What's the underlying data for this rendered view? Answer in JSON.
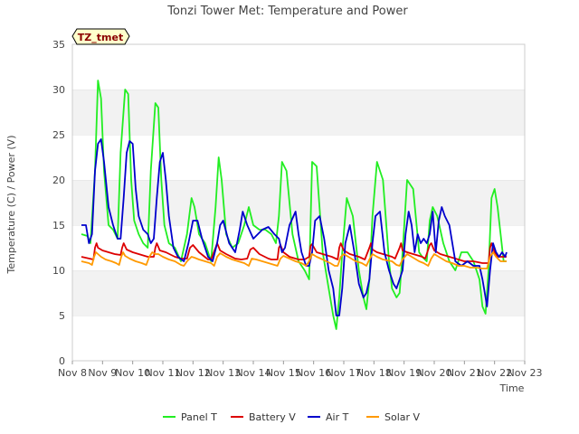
{
  "chart_data": {
    "type": "line",
    "title": "Tonzi Tower Met: Temperature and Power",
    "xlabel": "Time",
    "ylabel": "Temperature (C) / Power (V)",
    "tag": "TZ_tmet",
    "ylim": [
      0,
      35
    ],
    "yticks": [
      0,
      5,
      10,
      15,
      20,
      25,
      30,
      35
    ],
    "xlim": [
      0,
      15
    ],
    "xtick_labels": [
      "Nov 8",
      "Nov 9",
      "Nov 10",
      "Nov 11",
      "Nov 12",
      "Nov 13",
      "Nov 14",
      "Nov 15",
      "Nov 16",
      "Nov 17",
      "Nov 18",
      "Nov 19",
      "Nov 20",
      "Nov 21",
      "Nov 22",
      "Nov 23"
    ],
    "x_unit": "days since Nov 8",
    "series": [
      {
        "name": "Panel T",
        "color": "#22ee22",
        "x": [
          0.3,
          0.5,
          0.6,
          0.75,
          0.85,
          0.95,
          1.05,
          1.2,
          1.35,
          1.5,
          1.6,
          1.75,
          1.85,
          1.95,
          2.05,
          2.2,
          2.35,
          2.5,
          2.6,
          2.75,
          2.85,
          2.95,
          3.05,
          3.2,
          3.4,
          3.6,
          3.8,
          3.95,
          4.05,
          4.2,
          4.4,
          4.6,
          4.75,
          4.85,
          4.95,
          5.1,
          5.3,
          5.5,
          5.7,
          5.85,
          6.0,
          6.2,
          6.4,
          6.6,
          6.75,
          6.85,
          6.95,
          7.1,
          7.3,
          7.5,
          7.7,
          7.85,
          7.95,
          8.1,
          8.3,
          8.5,
          8.65,
          8.75,
          8.85,
          8.95,
          9.1,
          9.3,
          9.5,
          9.65,
          9.75,
          9.85,
          9.95,
          10.1,
          10.3,
          10.5,
          10.6,
          10.75,
          10.85,
          10.95,
          11.1,
          11.3,
          11.5,
          11.6,
          11.75,
          11.85,
          11.95,
          12.1,
          12.3,
          12.5,
          12.7,
          12.9,
          13.1,
          13.3,
          13.5,
          13.6,
          13.7,
          13.8,
          13.9,
          14.0,
          14.1,
          14.3,
          14.4
        ],
        "values": [
          14.0,
          13.8,
          13.0,
          21.0,
          31.0,
          29.0,
          21.0,
          15.0,
          14.5,
          13.5,
          23.0,
          30.0,
          29.5,
          20.0,
          15.5,
          14.0,
          13.0,
          12.5,
          21.0,
          28.5,
          28.0,
          20.0,
          15.0,
          13.0,
          12.5,
          11.0,
          14.0,
          18.0,
          17.0,
          14.0,
          13.0,
          11.0,
          17.0,
          22.5,
          20.0,
          14.0,
          12.5,
          13.0,
          15.0,
          17.0,
          15.0,
          14.5,
          14.5,
          14.0,
          13.0,
          16.0,
          22.0,
          21.0,
          14.0,
          11.0,
          10.0,
          9.0,
          22.0,
          21.5,
          12.0,
          8.0,
          5.0,
          3.5,
          7.0,
          12.0,
          18.0,
          16.0,
          10.0,
          7.0,
          5.7,
          9.0,
          16.0,
          22.0,
          20.0,
          11.0,
          8.0,
          7.0,
          7.5,
          12.0,
          20.0,
          19.0,
          12.0,
          11.5,
          11.0,
          15.5,
          17.0,
          16.0,
          13.0,
          11.0,
          10.0,
          12.0,
          12.0,
          11.0,
          9.0,
          6.0,
          5.2,
          10.0,
          18.0,
          19.0,
          17.0,
          11.0,
          11.0
        ]
      },
      {
        "name": "Battery V",
        "color": "#dd0000",
        "x": [
          0.3,
          0.7,
          0.75,
          0.8,
          0.85,
          1.0,
          1.2,
          1.4,
          1.6,
          1.65,
          1.7,
          1.8,
          2.0,
          2.2,
          2.5,
          2.7,
          2.75,
          2.8,
          2.9,
          3.1,
          3.4,
          3.6,
          3.8,
          3.9,
          4.0,
          4.2,
          4.5,
          4.6,
          4.75,
          4.8,
          4.9,
          5.1,
          5.4,
          5.6,
          5.8,
          5.9,
          6.0,
          6.2,
          6.5,
          6.6,
          6.8,
          6.85,
          6.9,
          7.0,
          7.2,
          7.5,
          7.7,
          7.85,
          7.9,
          7.95,
          8.1,
          8.3,
          8.6,
          8.8,
          8.85,
          8.9,
          9.0,
          9.2,
          9.5,
          9.7,
          9.85,
          9.9,
          9.95,
          10.1,
          10.3,
          10.6,
          10.7,
          10.85,
          10.9,
          10.95,
          11.1,
          11.3,
          11.6,
          11.7,
          11.85,
          11.9,
          12.0,
          12.2,
          12.5,
          12.8,
          13.0,
          13.3,
          13.6,
          13.8,
          13.85,
          13.9,
          14.0,
          14.1,
          14.3,
          14.4
        ],
        "values": [
          11.5,
          11.2,
          12.5,
          13.0,
          12.5,
          12.2,
          12.0,
          11.8,
          11.7,
          12.5,
          13.0,
          12.3,
          12.0,
          11.8,
          11.5,
          11.5,
          12.5,
          13.0,
          12.2,
          12.0,
          11.5,
          11.3,
          11.3,
          12.5,
          12.8,
          12.0,
          11.2,
          11.2,
          12.5,
          13.0,
          12.2,
          11.8,
          11.3,
          11.2,
          11.3,
          12.3,
          12.5,
          11.8,
          11.3,
          11.2,
          11.2,
          12.5,
          12.8,
          12.0,
          11.5,
          11.2,
          11.2,
          11.5,
          12.7,
          12.9,
          12.0,
          11.8,
          11.5,
          11.2,
          12.5,
          13.0,
          12.2,
          11.8,
          11.5,
          11.2,
          12.5,
          13.0,
          12.3,
          12.0,
          11.8,
          11.5,
          11.3,
          12.5,
          13.0,
          12.2,
          12.0,
          11.8,
          11.5,
          11.3,
          12.8,
          13.0,
          12.2,
          11.8,
          11.5,
          11.2,
          11.0,
          11.0,
          10.8,
          10.8,
          12.5,
          13.0,
          12.0,
          11.5,
          11.5,
          11.5
        ]
      },
      {
        "name": "Air T",
        "color": "#0000cc",
        "x": [
          0.3,
          0.45,
          0.55,
          0.65,
          0.75,
          0.85,
          0.95,
          1.05,
          1.2,
          1.35,
          1.5,
          1.6,
          1.7,
          1.8,
          1.9,
          2.0,
          2.1,
          2.2,
          2.35,
          2.5,
          2.6,
          2.7,
          2.8,
          2.9,
          3.0,
          3.1,
          3.2,
          3.35,
          3.5,
          3.7,
          3.85,
          4.0,
          4.15,
          4.3,
          4.5,
          4.65,
          4.8,
          4.9,
          5.0,
          5.2,
          5.4,
          5.55,
          5.65,
          5.8,
          6.0,
          6.3,
          6.5,
          6.7,
          6.85,
          6.95,
          7.05,
          7.2,
          7.4,
          7.5,
          7.6,
          7.75,
          7.85,
          7.95,
          8.05,
          8.2,
          8.35,
          8.5,
          8.65,
          8.75,
          8.85,
          8.95,
          9.05,
          9.2,
          9.35,
          9.5,
          9.65,
          9.75,
          9.85,
          9.95,
          10.05,
          10.2,
          10.35,
          10.5,
          10.65,
          10.75,
          10.85,
          10.95,
          11.05,
          11.15,
          11.25,
          11.35,
          11.45,
          11.55,
          11.65,
          11.75,
          11.85,
          11.95,
          12.05,
          12.15,
          12.25,
          12.35,
          12.5,
          12.7,
          12.9,
          13.1,
          13.3,
          13.5,
          13.6,
          13.7,
          13.75,
          13.85,
          13.95,
          14.05,
          14.15,
          14.25,
          14.35,
          14.4
        ],
        "values": [
          15.0,
          15.0,
          13.0,
          14.0,
          21.0,
          24.0,
          24.5,
          22.0,
          17.0,
          15.0,
          13.5,
          13.5,
          18.0,
          23.0,
          24.3,
          24.0,
          19.0,
          16.0,
          14.5,
          14.0,
          13.0,
          13.5,
          18.0,
          22.0,
          23.0,
          20.0,
          16.0,
          12.5,
          11.5,
          11.0,
          13.0,
          15.5,
          15.5,
          13.5,
          11.5,
          11.0,
          13.0,
          15.0,
          15.5,
          13.0,
          12.0,
          14.5,
          16.5,
          15.0,
          13.5,
          14.5,
          14.8,
          14.0,
          13.5,
          12.0,
          12.5,
          15.0,
          16.5,
          14.0,
          12.0,
          10.5,
          10.5,
          12.0,
          15.5,
          16.0,
          13.5,
          10.0,
          8.0,
          5.0,
          5.0,
          8.0,
          13.0,
          15.0,
          12.0,
          8.5,
          7.0,
          7.5,
          9.0,
          13.0,
          16.0,
          16.5,
          12.0,
          10.0,
          8.5,
          8.0,
          9.0,
          10.0,
          14.0,
          16.5,
          15.0,
          12.0,
          14.0,
          13.0,
          13.5,
          13.0,
          14.0,
          16.5,
          12.0,
          15.5,
          17.0,
          16.0,
          15.0,
          11.0,
          10.5,
          11.0,
          10.5,
          10.5,
          9.0,
          7.0,
          6.0,
          10.0,
          13.0,
          12.0,
          11.5,
          12.0,
          11.5,
          12.0
        ]
      },
      {
        "name": "Solar V",
        "color": "#ff9900",
        "x": [
          0.3,
          0.55,
          0.65,
          0.72,
          0.78,
          0.85,
          0.95,
          1.1,
          1.3,
          1.45,
          1.55,
          1.62,
          1.68,
          1.75,
          1.9,
          2.1,
          2.3,
          2.45,
          2.55,
          2.65,
          2.75,
          2.85,
          3.0,
          3.2,
          3.4,
          3.6,
          3.7,
          3.8,
          3.95,
          4.05,
          4.2,
          4.4,
          4.6,
          4.7,
          4.8,
          4.9,
          5.1,
          5.3,
          5.5,
          5.7,
          5.85,
          5.95,
          6.1,
          6.3,
          6.5,
          6.7,
          6.8,
          6.9,
          7.0,
          7.2,
          7.4,
          7.6,
          7.75,
          7.85,
          7.95,
          8.1,
          8.3,
          8.55,
          8.7,
          8.8,
          8.9,
          9.0,
          9.2,
          9.4,
          9.6,
          9.75,
          9.85,
          9.95,
          10.1,
          10.3,
          10.6,
          10.75,
          10.85,
          10.95,
          11.1,
          11.3,
          11.5,
          11.65,
          11.8,
          11.9,
          12.0,
          12.2,
          12.4,
          12.6,
          12.8,
          13.0,
          13.2,
          13.4,
          13.6,
          13.75,
          13.85,
          13.95,
          14.05,
          14.2,
          14.4
        ],
        "values": [
          11.0,
          10.8,
          10.6,
          11.5,
          12.0,
          11.8,
          11.5,
          11.2,
          11.0,
          10.8,
          10.6,
          11.5,
          12.0,
          11.6,
          11.3,
          11.0,
          10.8,
          10.6,
          11.5,
          12.0,
          11.8,
          11.8,
          11.5,
          11.2,
          11.0,
          10.6,
          10.5,
          11.0,
          11.5,
          11.4,
          11.2,
          11.0,
          10.8,
          10.5,
          11.5,
          11.9,
          11.5,
          11.2,
          11.0,
          10.8,
          10.5,
          11.3,
          11.2,
          11.0,
          10.8,
          10.6,
          10.5,
          11.3,
          11.6,
          11.3,
          11.0,
          10.8,
          10.5,
          11.0,
          11.8,
          11.5,
          11.2,
          10.8,
          10.5,
          10.5,
          11.5,
          11.8,
          11.4,
          11.0,
          10.8,
          10.5,
          11.2,
          11.8,
          11.5,
          11.2,
          11.0,
          10.6,
          10.5,
          11.2,
          11.8,
          11.4,
          11.0,
          10.8,
          10.5,
          11.3,
          11.8,
          11.4,
          11.0,
          10.8,
          10.5,
          10.5,
          10.3,
          10.3,
          10.2,
          10.2,
          11.5,
          12.0,
          11.5,
          11.0,
          11.0
        ]
      }
    ],
    "legend_position": "bottom-center",
    "grid": "alternating horizontal bands"
  }
}
